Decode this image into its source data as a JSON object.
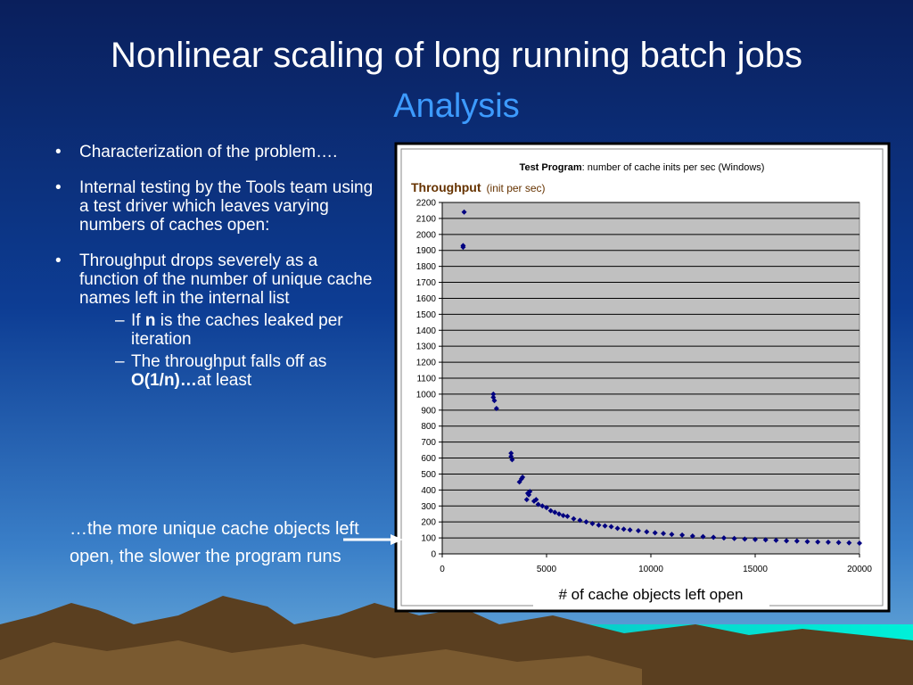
{
  "title": "Nonlinear scaling of long running batch jobs",
  "subtitle": "Analysis",
  "bullets": [
    {
      "text": "Characterization of the problem…."
    },
    {
      "text": "Internal testing by the Tools team using a test driver which leaves varying numbers of caches open:"
    },
    {
      "text": "Throughput drops severely as a function of the number of unique cache names left in the internal list",
      "sub": [
        {
          "parts": [
            "If ",
            "n",
            " is the caches leaked per iteration"
          ]
        },
        {
          "parts": [
            "The throughput falls off as ",
            "O(1/n)…",
            "at least"
          ]
        }
      ]
    }
  ],
  "callout": "…the more unique cache objects left open, the slower the program runs",
  "chart_data": {
    "type": "scatter",
    "title": "Test Program",
    "title_note": ": number of cache inits per sec (Windows)",
    "y_label": "Throughput",
    "y_label_note": "(init per sec)",
    "x_label": "# of cache objects left open",
    "color": "#000080",
    "grid": true,
    "xlim": [
      0,
      20000
    ],
    "ylim": [
      0,
      2200
    ],
    "xticks": [
      0,
      5000,
      10000,
      15000,
      20000
    ],
    "yticks": [
      0,
      100,
      200,
      300,
      400,
      500,
      600,
      700,
      800,
      900,
      1000,
      1100,
      1200,
      1300,
      1400,
      1500,
      1600,
      1700,
      1800,
      1900,
      2000,
      2100,
      2200
    ],
    "x": [
      1000,
      1000,
      1050,
      2450,
      2450,
      2500,
      2600,
      3300,
      3300,
      3350,
      3700,
      3800,
      3850,
      4050,
      4100,
      4150,
      4200,
      4400,
      4500,
      4600,
      4800,
      5000,
      5200,
      5400,
      5600,
      5800,
      6000,
      6300,
      6600,
      6900,
      7200,
      7500,
      7800,
      8100,
      8400,
      8700,
      9000,
      9400,
      9800,
      10200,
      10600,
      11000,
      11500,
      12000,
      12500,
      13000,
      13500,
      14000,
      14500,
      15000,
      15500,
      16000,
      16500,
      17000,
      17500,
      18000,
      18500,
      19000,
      19500,
      20000
    ],
    "values": [
      1930,
      1920,
      2140,
      1000,
      980,
      960,
      910,
      630,
      610,
      590,
      450,
      470,
      480,
      340,
      380,
      370,
      390,
      330,
      340,
      310,
      300,
      290,
      270,
      260,
      250,
      240,
      235,
      220,
      210,
      200,
      190,
      180,
      175,
      170,
      160,
      155,
      150,
      145,
      138,
      132,
      128,
      122,
      118,
      112,
      108,
      104,
      100,
      96,
      93,
      90,
      88,
      85,
      82,
      80,
      77,
      75,
      73,
      71,
      69,
      67
    ]
  }
}
